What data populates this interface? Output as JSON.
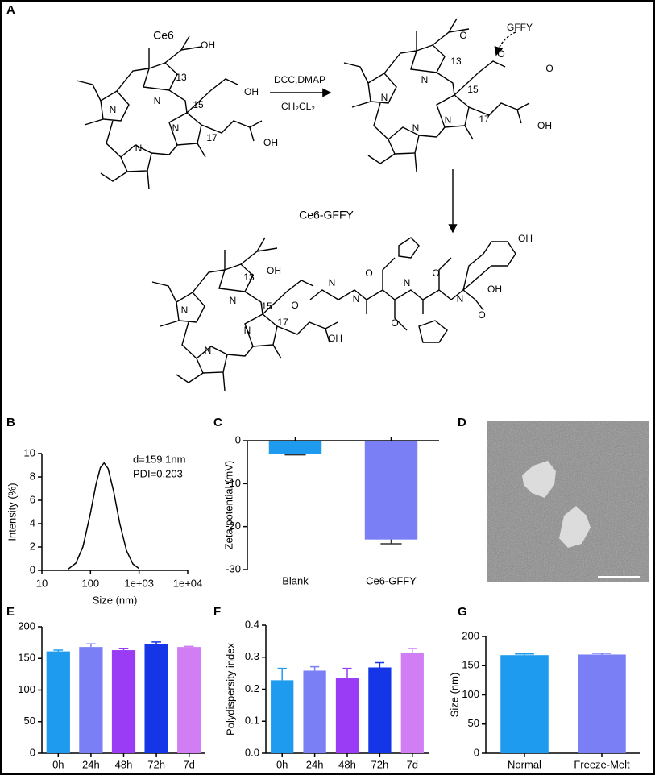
{
  "panels": [
    "A",
    "B",
    "C",
    "D",
    "E",
    "F",
    "G"
  ],
  "scheme": {
    "reactant": "Ce6",
    "reagents": "DCC,DMAP",
    "solvent": "CH₂CL₂",
    "peptide": "GFFY",
    "product": "Ce6-GFFY",
    "atoms": [
      "OH",
      "13",
      "OH",
      "N",
      "N",
      "15",
      "N",
      "17",
      "OH",
      "N",
      "O",
      "13",
      "O",
      "O",
      "N",
      "N",
      "15",
      "N",
      "17",
      "OH",
      "N",
      "OH",
      "13",
      "N",
      "N",
      "15",
      "N",
      "17",
      "OH",
      "N",
      "O",
      "N",
      "O",
      "N",
      "O",
      "N",
      "O",
      "N",
      "O",
      "OH",
      "OH"
    ]
  },
  "chart_data": [
    {
      "type": "line",
      "xlabel": "Size (nm)",
      "ylabel": "Intensity (%)",
      "annotations": [
        "d=159.1nm",
        "PDI=0.203"
      ],
      "color": "#000000",
      "xscale": "log",
      "x": [
        35,
        50,
        70,
        100,
        130,
        160,
        190,
        230,
        300,
        400,
        550,
        750,
        1000
      ],
      "values": [
        0.12,
        0.62,
        2.03,
        4.91,
        7.37,
        8.79,
        9.2,
        8.71,
        6.75,
        4.01,
        1.7,
        0.54,
        0.15
      ],
      "xlim": [
        10,
        10000
      ],
      "xticks": [
        10,
        100,
        {
          "value": 1000,
          "label": "1e+03"
        },
        {
          "value": 10000,
          "label": "1e+04"
        }
      ],
      "ylim": [
        0,
        10
      ],
      "yticks": [
        0,
        2,
        4,
        6,
        8,
        10
      ]
    },
    {
      "type": "bar",
      "ylabel": "Zeta potential (mV)",
      "categories": [
        "Blank",
        "Ce6-GFFY"
      ],
      "values": [
        -3,
        -23
      ],
      "errors": [
        0.3,
        1
      ],
      "colors": [
        "#1e9bef",
        "#7b7ff5"
      ],
      "ylim": [
        -30,
        0
      ],
      "yticks": [
        0,
        -10,
        -20,
        -30
      ]
    },
    {
      "type": "bar",
      "categories": [
        "0h",
        "24h",
        "48h",
        "72h",
        "7d"
      ],
      "values": [
        161,
        168,
        163,
        172,
        168
      ],
      "errors": [
        2,
        5,
        3,
        4,
        1
      ],
      "colors": [
        "#1e9bef",
        "#7b7ff5",
        "#9a3cf5",
        "#1436e6",
        "#d17ef5"
      ],
      "ylim": [
        0,
        200
      ],
      "yticks": [
        0,
        50,
        100,
        150,
        200
      ]
    },
    {
      "type": "bar",
      "ylabel": "Polydispersity index",
      "categories": [
        "0h",
        "24h",
        "48h",
        "72h",
        "7d"
      ],
      "values": [
        0.228,
        0.258,
        0.235,
        0.268,
        0.312
      ],
      "errors": [
        0.037,
        0.012,
        0.03,
        0.015,
        0.015
      ],
      "colors": [
        "#1e9bef",
        "#7b7ff5",
        "#9a3cf5",
        "#1436e6",
        "#d17ef5"
      ],
      "ylim": [
        0,
        0.4
      ],
      "yticks": [
        {
          "value": 0,
          "label": "0.0"
        },
        0.1,
        0.2,
        0.3,
        0.4
      ]
    },
    {
      "type": "bar",
      "ylabel": "Size (nm)",
      "categories": [
        "Normal",
        "Freeze-Melt"
      ],
      "values": [
        168,
        169
      ],
      "errors": [
        2,
        2
      ],
      "colors": [
        "#1e9bef",
        "#7b7ff5"
      ],
      "ylim": [
        0,
        200
      ],
      "yticks": [
        0,
        50,
        100,
        150,
        200
      ]
    }
  ]
}
